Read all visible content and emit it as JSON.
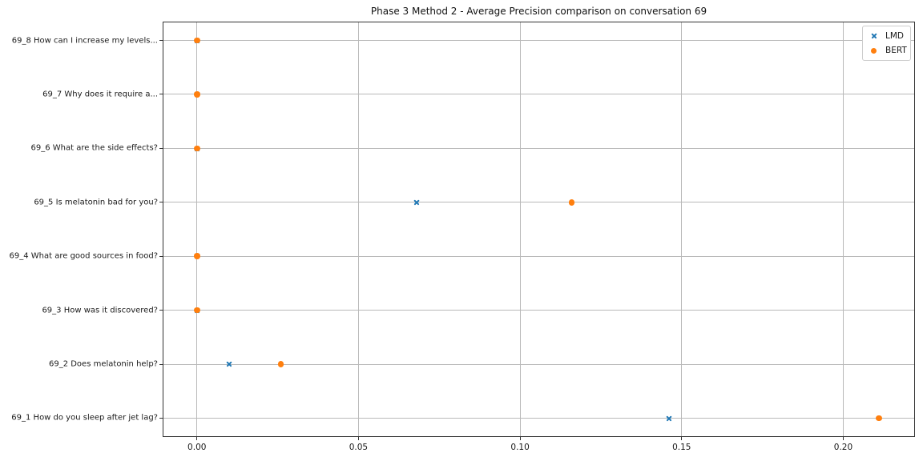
{
  "title": "Phase 3 Method 2 - Average Precision comparison on conversation 69",
  "colors": {
    "lmd_blue": "#1f77b4",
    "bert_orange": "#ff7f0e",
    "gridline": "#b9b9b9",
    "spine": "#333333",
    "background": "#ffffff",
    "legend_border": "#cccccc"
  },
  "legend": {
    "position": "upper right",
    "entries": [
      {
        "label": "LMD",
        "marker": "x",
        "color": "#1f77b4"
      },
      {
        "label": "BERT",
        "marker": "circle",
        "color": "#ff7f0e"
      }
    ]
  },
  "chart_data": {
    "type": "scatter",
    "orientation": "horizontal-categorical",
    "title": "Phase 3 Method 2 - Average Precision comparison on conversation 69",
    "xlabel": "",
    "ylabel": "",
    "categories_top_to_bottom": [
      "69_8 How can I increase my levels...",
      "69_7 Why does it require a...",
      "69_6 What are the side effects?",
      "69_5 Is melatonin bad for you?",
      "69_4 What are good sources in food?",
      "69_3 How was it discovered?",
      "69_2 Does melatonin help?",
      "69_1 How do you sleep after jet lag?"
    ],
    "series": [
      {
        "name": "LMD",
        "marker": "x",
        "color": "#1f77b4",
        "values_top_to_bottom": [
          0.0,
          0.0,
          0.0,
          0.068,
          0.0,
          0.0,
          0.01,
          0.146
        ]
      },
      {
        "name": "BERT",
        "marker": "circle",
        "color": "#ff7f0e",
        "values_top_to_bottom": [
          0.0,
          0.0,
          0.0,
          0.116,
          0.0,
          0.0,
          0.026,
          0.211
        ]
      }
    ],
    "x_ticks": [
      0.0,
      0.05,
      0.1,
      0.15,
      0.2
    ],
    "x_tick_labels": [
      "0.00",
      "0.05",
      "0.10",
      "0.15",
      "0.20"
    ],
    "xlim": [
      -0.0106,
      0.2222
    ],
    "grid": true,
    "legend_position": "upper right"
  }
}
